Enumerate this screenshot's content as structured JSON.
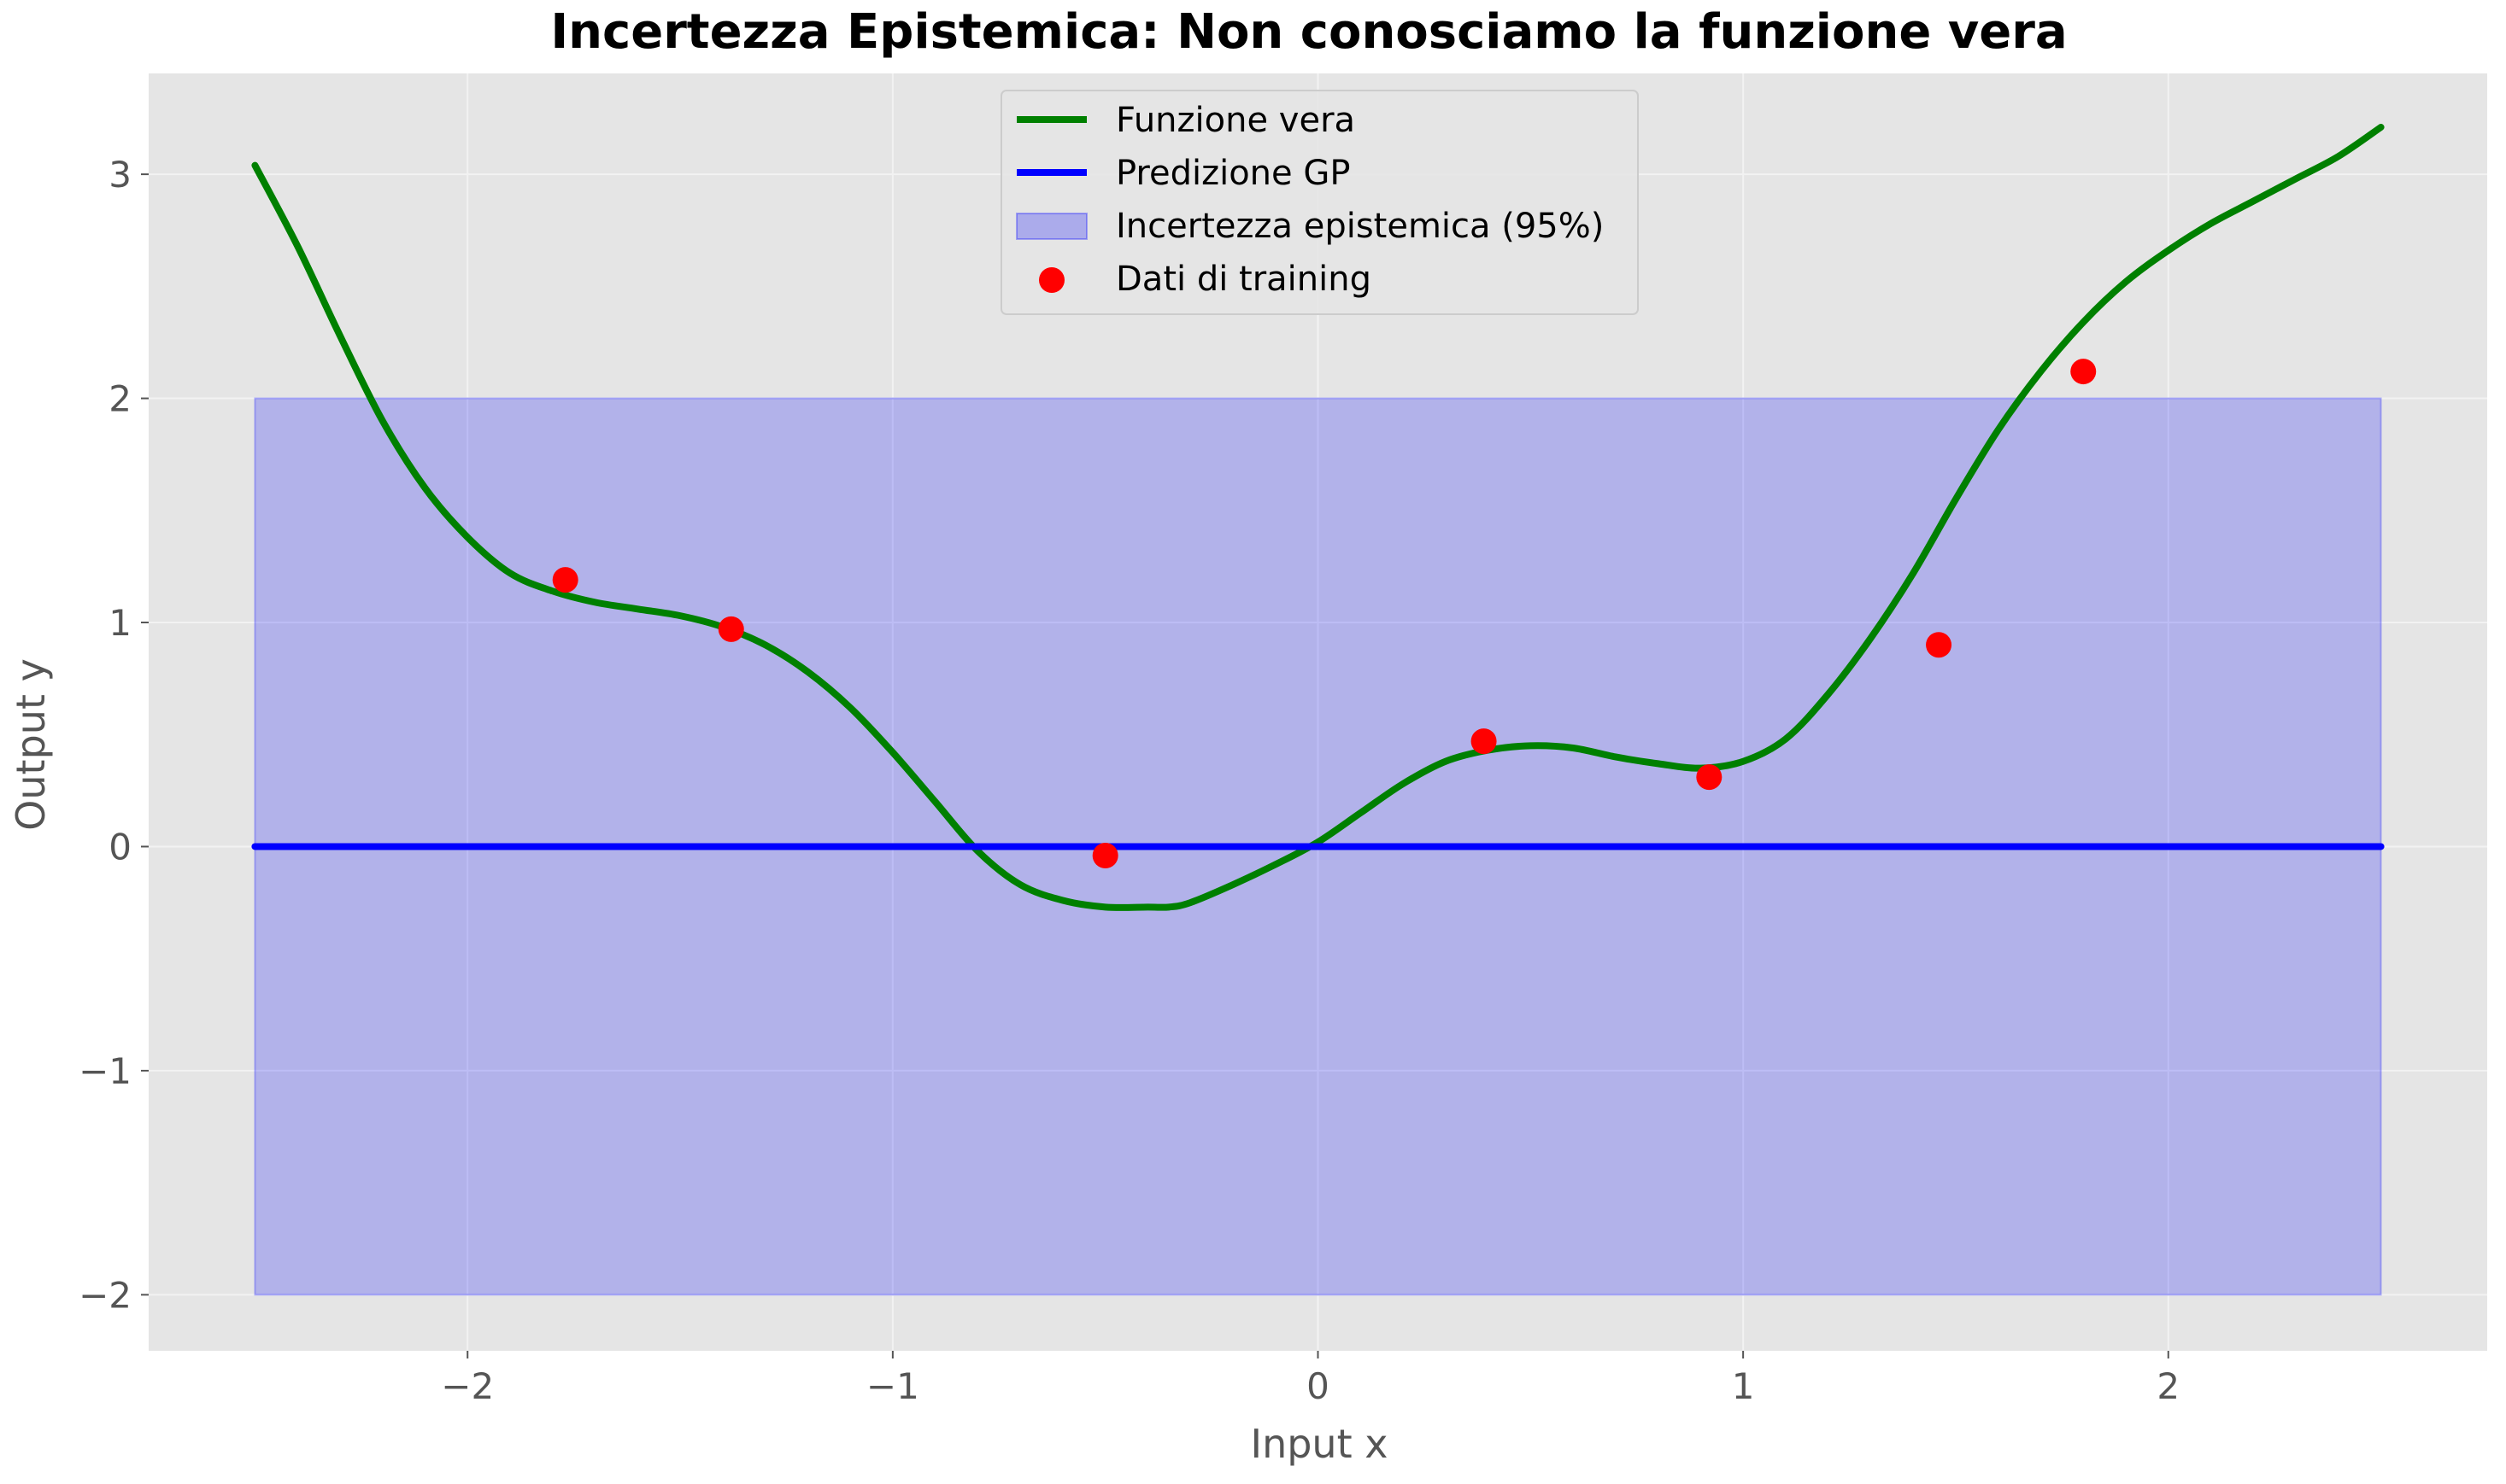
{
  "chart_data": {
    "type": "line",
    "title": "Incertezza Epistemica: Non conosciamo la funzione vera",
    "xlabel": "Input x",
    "ylabel": "Output y",
    "xlim": [
      -2.75,
      2.75
    ],
    "ylim": [
      -2.25,
      3.45
    ],
    "xticks": [
      -2,
      -1,
      0,
      1,
      2
    ],
    "xtick_labels": [
      "−2",
      "−1",
      "0",
      "1",
      "2"
    ],
    "yticks": [
      -2,
      -1,
      0,
      1,
      2,
      3
    ],
    "ytick_labels": [
      "−2",
      "−1",
      "0",
      "1",
      "2",
      "3"
    ],
    "grid": true,
    "legend_position": "top-center",
    "series": [
      {
        "name": "Funzione vera",
        "kind": "line",
        "color": "#008000",
        "x": [
          -2.5,
          -2.4,
          -2.3,
          -2.2,
          -2.1,
          -2.0,
          -1.9,
          -1.8,
          -1.7,
          -1.6,
          -1.5,
          -1.4,
          -1.3,
          -1.2,
          -1.1,
          -1.0,
          -0.9,
          -0.8,
          -0.7,
          -0.6,
          -0.5,
          -0.4,
          -0.35,
          -0.3,
          -0.2,
          -0.1,
          0.0,
          0.1,
          0.2,
          0.3,
          0.4,
          0.5,
          0.6,
          0.7,
          0.8,
          0.9,
          1.0,
          1.1,
          1.2,
          1.3,
          1.4,
          1.5,
          1.6,
          1.7,
          1.8,
          1.9,
          2.0,
          2.1,
          2.2,
          2.3,
          2.4,
          2.5
        ],
        "y": [
          3.04,
          2.68,
          2.28,
          1.9,
          1.6,
          1.38,
          1.22,
          1.14,
          1.09,
          1.06,
          1.03,
          0.98,
          0.9,
          0.78,
          0.62,
          0.42,
          0.2,
          -0.02,
          -0.17,
          -0.24,
          -0.27,
          -0.27,
          -0.27,
          -0.25,
          -0.17,
          -0.08,
          0.02,
          0.15,
          0.28,
          0.38,
          0.43,
          0.45,
          0.44,
          0.4,
          0.37,
          0.35,
          0.38,
          0.48,
          0.68,
          0.93,
          1.22,
          1.55,
          1.86,
          2.12,
          2.34,
          2.52,
          2.66,
          2.78,
          2.88,
          2.98,
          3.08,
          3.21
        ]
      },
      {
        "name": "Predizione GP",
        "kind": "line",
        "color": "#0000ff",
        "x": [
          -2.5,
          2.5
        ],
        "y": [
          0,
          0
        ]
      },
      {
        "name": "Incertezza epistemica (95%)",
        "kind": "band",
        "color": "#0000ff",
        "x": [
          -2.5,
          2.5
        ],
        "lower": [
          -2,
          -2
        ],
        "upper": [
          2,
          2
        ]
      },
      {
        "name": "Dati di training",
        "kind": "scatter",
        "color": "#ff0000",
        "x": [
          -1.77,
          -1.38,
          -0.5,
          0.39,
          0.92,
          1.46,
          1.8
        ],
        "y": [
          1.19,
          0.97,
          -0.04,
          0.47,
          0.31,
          0.9,
          2.12
        ]
      }
    ]
  }
}
